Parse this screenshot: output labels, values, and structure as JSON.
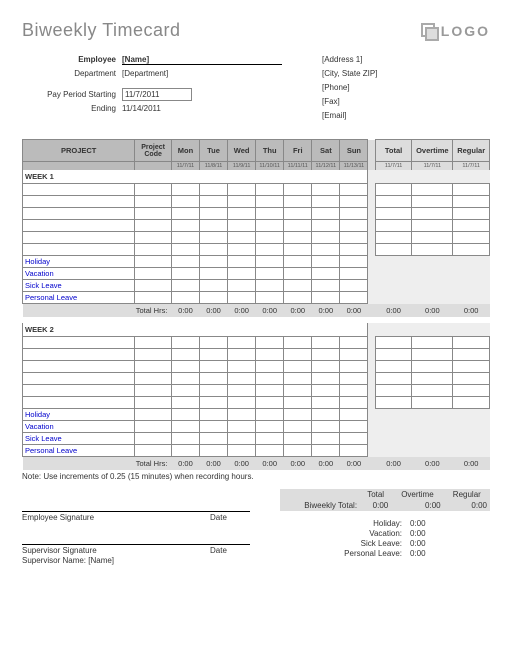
{
  "title": "Biweekly Timecard",
  "logo": "LOGO",
  "employee": {
    "label": "Employee",
    "value": "[Name]",
    "dept_label": "Department",
    "dept_value": "[Department]",
    "start_label": "Pay Period Starting",
    "start_value": "11/7/2011",
    "end_label": "Ending",
    "end_value": "11/14/2011"
  },
  "company": {
    "address": "[Address 1]",
    "csz": "[City, State  ZIP]",
    "phone": "[Phone]",
    "fax": "[Fax]",
    "email": "[Email]"
  },
  "headers": {
    "project": "PROJECT",
    "code": "Project Code",
    "days": [
      "Mon",
      "Tue",
      "Wed",
      "Thu",
      "Fri",
      "Sat",
      "Sun"
    ],
    "dates": [
      "11/7/11",
      "11/8/11",
      "11/9/11",
      "11/10/11",
      "11/11/11",
      "11/12/11",
      "11/13/11"
    ],
    "total": "Total",
    "overtime": "Overtime",
    "regular": "Regular"
  },
  "week1": "WEEK 1",
  "week2": "WEEK 2",
  "leaves": [
    "Holiday",
    "Vacation",
    "Sick Leave",
    "Personal Leave"
  ],
  "total_hrs": "Total Hrs:",
  "zero": "0:00",
  "note": "Note: Use increments of 0.25 (15 minutes) when recording hours.",
  "biweekly": "Biweekly Total:",
  "sig": {
    "emp": "Employee Signature",
    "sup": "Supervisor Signature",
    "supname": "Supervisor Name: [Name]",
    "date": "Date"
  },
  "leave_summary": [
    {
      "label": "Holiday:",
      "val": "0:00"
    },
    {
      "label": "Vacation:",
      "val": "0:00"
    },
    {
      "label": "Sick Leave:",
      "val": "0:00"
    },
    {
      "label": "Personal Leave:",
      "val": "0:00"
    }
  ]
}
